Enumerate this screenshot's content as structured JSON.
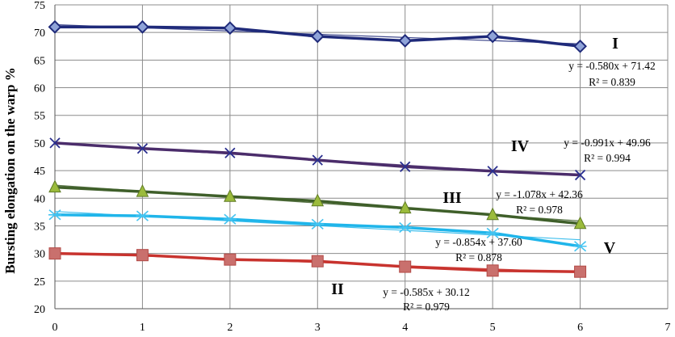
{
  "chart_data": {
    "type": "line",
    "title": "",
    "xlabel": "",
    "ylabel": "Bursting elongation on the warp %",
    "xlim": [
      0,
      7
    ],
    "ylim": [
      20,
      75
    ],
    "xticks": [
      0,
      1,
      2,
      3,
      4,
      5,
      6,
      7
    ],
    "yticks": [
      20,
      25,
      30,
      35,
      40,
      45,
      50,
      55,
      60,
      65,
      70,
      75
    ],
    "grid": true,
    "legend": "none",
    "x": [
      0,
      1,
      2,
      3,
      4,
      5,
      6
    ],
    "series": [
      {
        "name": "I",
        "color": "#1f2a7a",
        "marker": "diamond",
        "values": [
          71.0,
          71.0,
          70.8,
          69.3,
          68.5,
          69.3,
          67.5
        ],
        "trendline": {
          "slope": -0.58,
          "intercept": 71.42
        },
        "equation": "y = -0.580x + 71.42",
        "r2": "R² = 0.839"
      },
      {
        "name": "IV",
        "color": "#4b2d6b",
        "marker": "x",
        "values": [
          50.0,
          49.0,
          48.2,
          46.9,
          45.7,
          44.9,
          44.2
        ],
        "trendline": {
          "slope": -0.991,
          "intercept": 49.96
        },
        "equation": "y = -0.991x + 49.96",
        "r2": "R² = 0.994"
      },
      {
        "name": "III",
        "color": "#3f5f2a",
        "marker": "triangle",
        "values": [
          42.0,
          41.2,
          40.3,
          39.5,
          38.2,
          37.0,
          35.4
        ],
        "trendline": {
          "slope": -1.078,
          "intercept": 42.36
        },
        "equation": "y = -1.078x + 42.36",
        "r2": "R² = 0.978"
      },
      {
        "name": "V",
        "color": "#1fb5ea",
        "marker": "star",
        "values": [
          37.0,
          36.8,
          36.2,
          35.3,
          34.7,
          33.7,
          31.3
        ],
        "trendline": {
          "slope": -0.854,
          "intercept": 37.6
        },
        "equation": "y = -0.854x + 37.60",
        "r2": "R² = 0.878"
      },
      {
        "name": "II",
        "color": "#c8332e",
        "marker": "square",
        "values": [
          30.0,
          29.7,
          28.9,
          28.6,
          27.6,
          26.9,
          26.7
        ],
        "trendline": {
          "slope": -0.585,
          "intercept": 30.12
        },
        "equation": "y = -0.585x + 30.12",
        "r2": "R² = 0.979"
      }
    ]
  }
}
